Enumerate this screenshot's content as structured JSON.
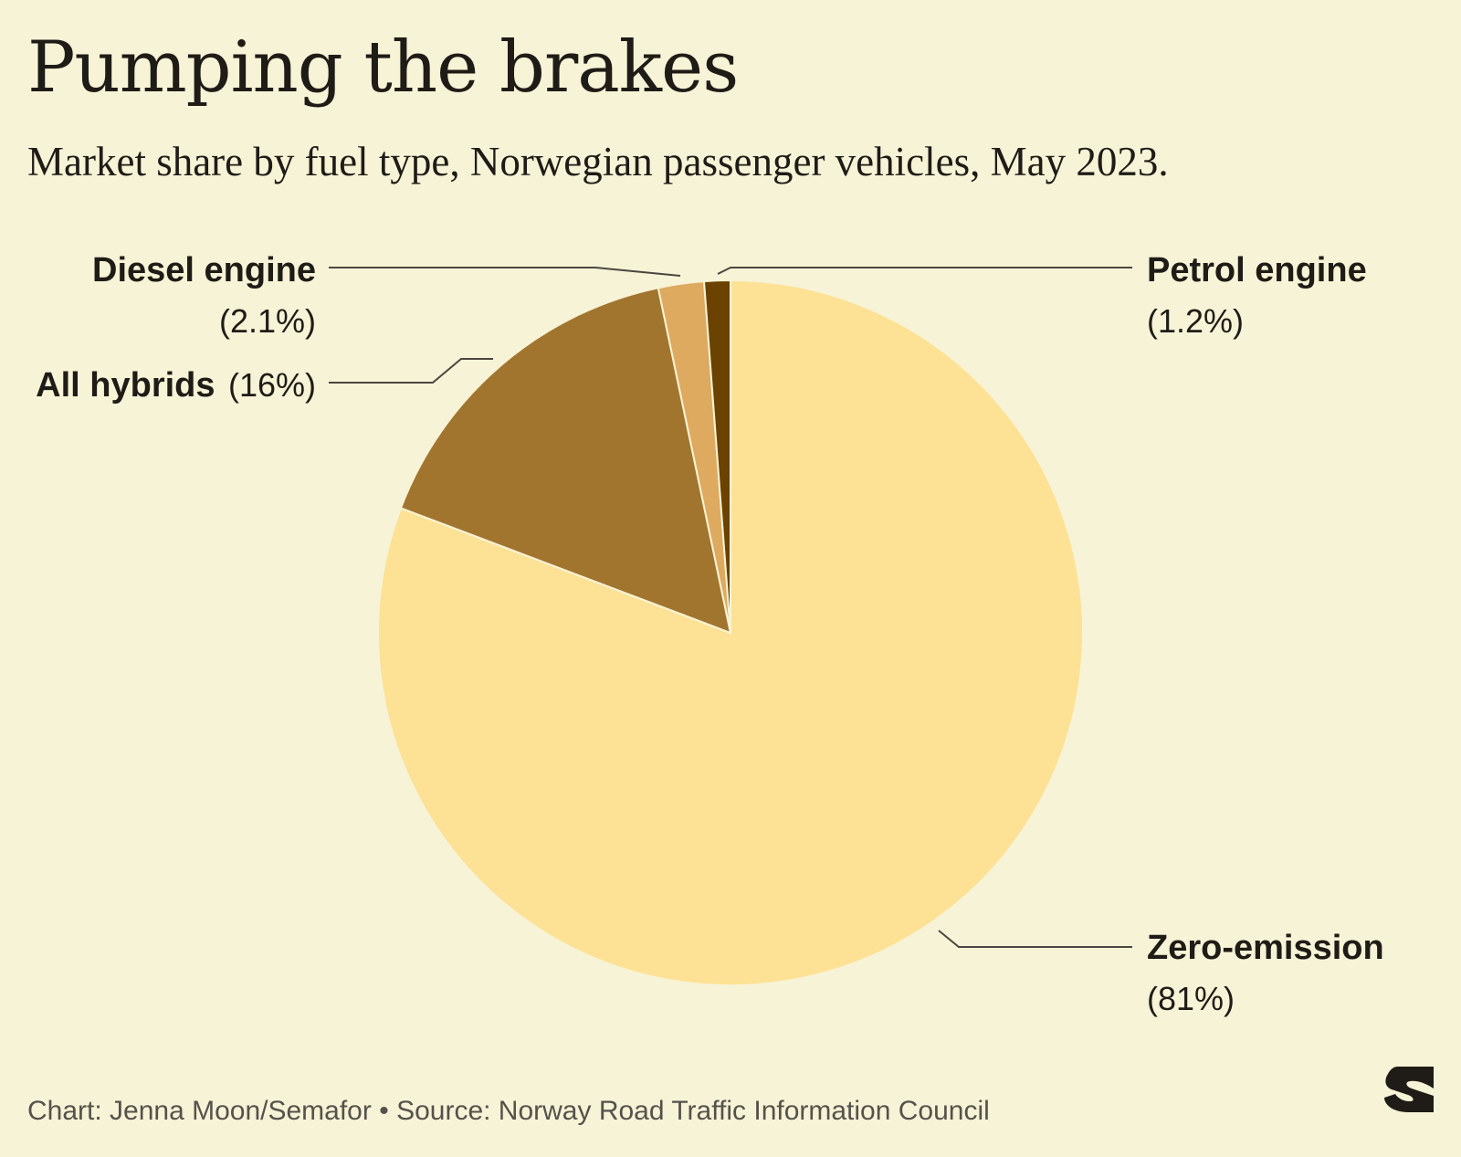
{
  "title": "Pumping the brakes",
  "subtitle": "Market share by fuel type, Norwegian passenger vehicles, May 2023.",
  "footer": {
    "credit": "Chart: Jenna Moon/Semafor",
    "separator": "•",
    "source": "Source: Norway Road Traffic Information Council"
  },
  "logo": {
    "icon": "semafor-s-logo-icon",
    "color": "#1f1c17"
  },
  "chart_data": {
    "type": "pie",
    "start": "12 o'clock, clockwise",
    "slices": [
      {
        "name": "Zero-emission",
        "value": 81,
        "value_label": "(81%)",
        "color": "#fde295"
      },
      {
        "name": "All hybrids",
        "value": 16,
        "value_label": "(16%)",
        "color": "#a2752e"
      },
      {
        "name": "Diesel engine",
        "value": 2.1,
        "value_label": "(2.1%)",
        "color": "#deaa5f"
      },
      {
        "name": "Petrol engine",
        "value": 1.2,
        "value_label": "(1.2%)",
        "color": "#6b4200"
      }
    ],
    "slice_border_color": "#f7f3d6",
    "leader_line_color": "#4a4740"
  }
}
